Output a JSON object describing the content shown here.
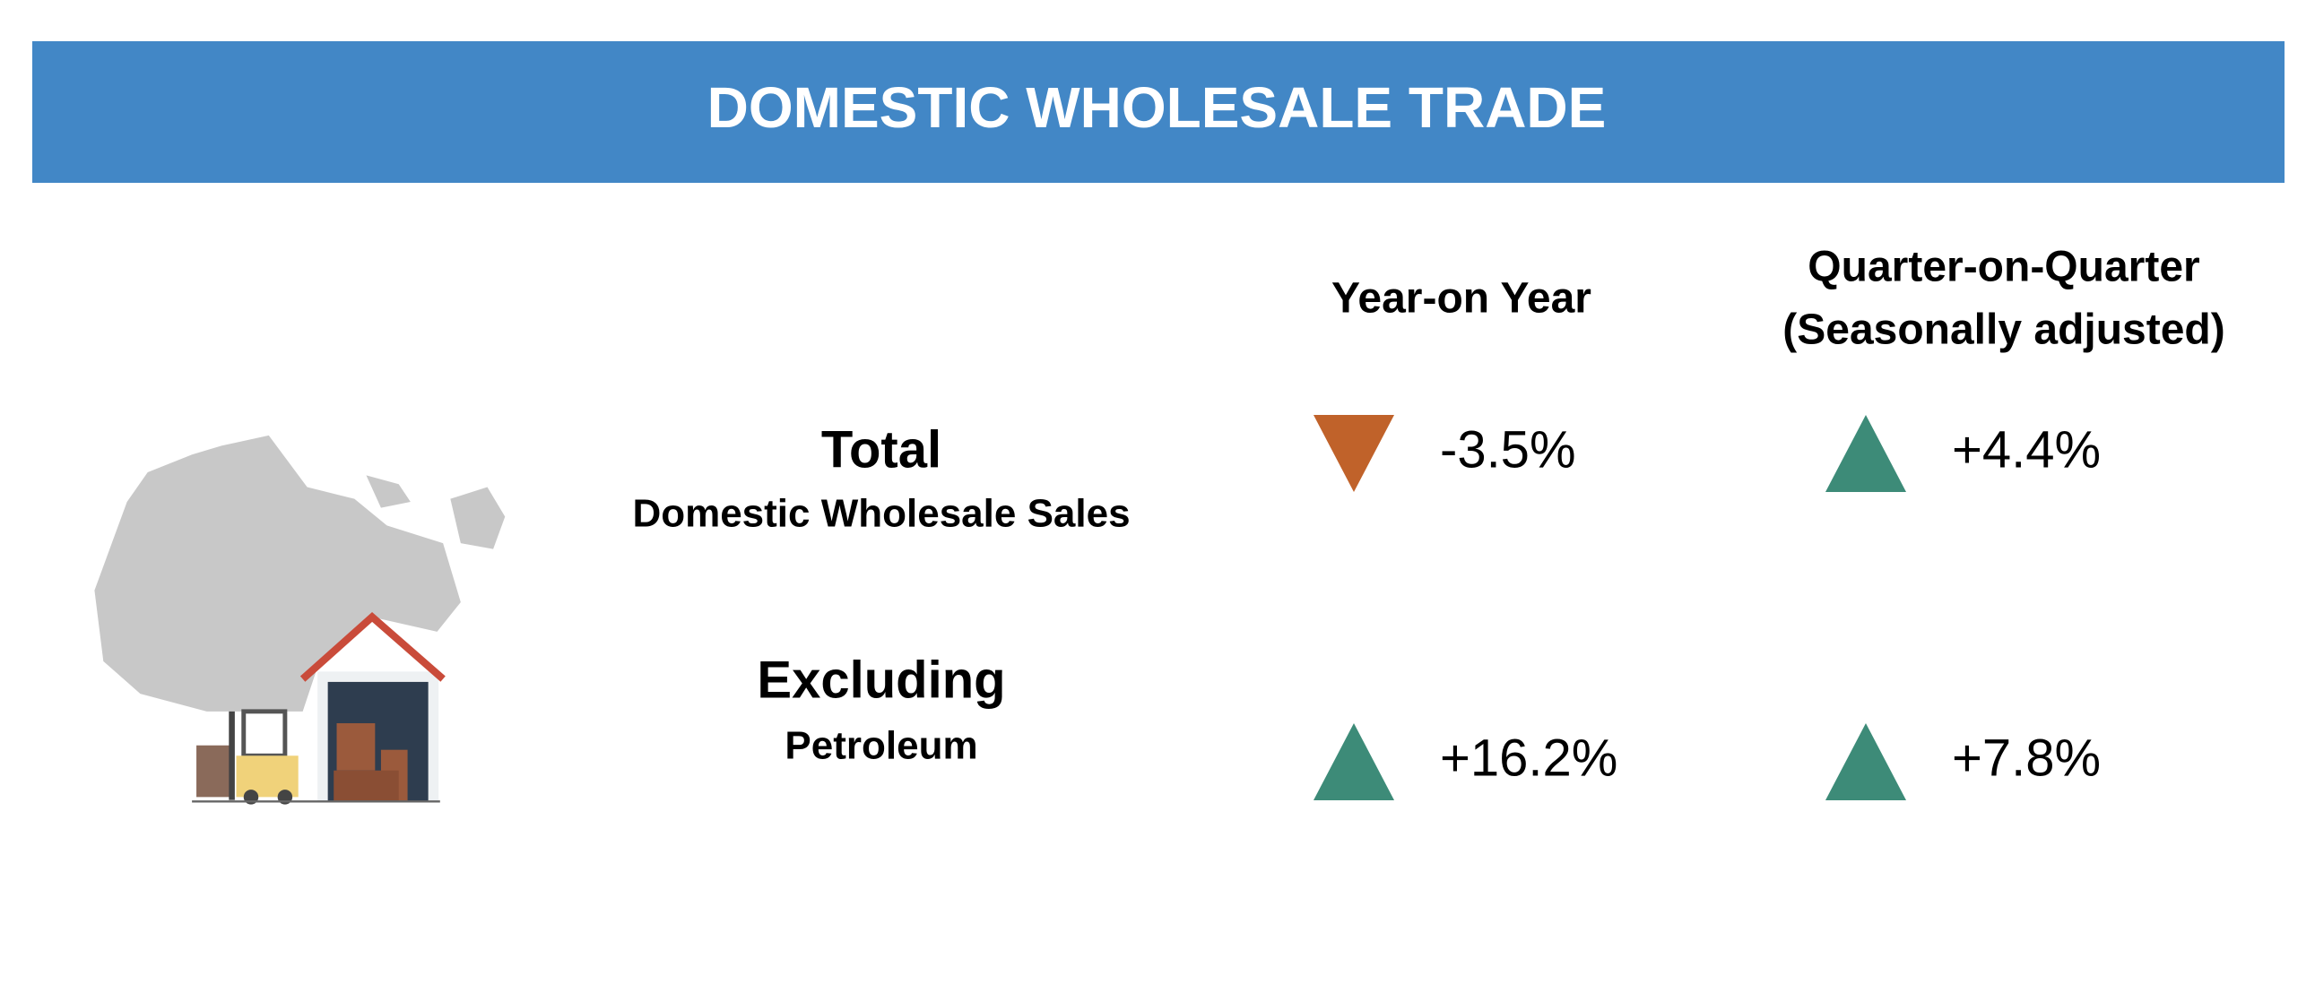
{
  "header": {
    "title": "DOMESTIC WHOLESALE TRADE"
  },
  "columns": [
    {
      "lines": [
        "Year-on Year"
      ]
    },
    {
      "lines": [
        "Quarter-on-Quarter",
        "(Seasonally adjusted)"
      ]
    }
  ],
  "rows": [
    {
      "label": "Total",
      "sublabel": "Domestic Wholesale Sales",
      "values": [
        "-3.5%",
        "+4.4%"
      ]
    },
    {
      "label": "Excluding",
      "sublabel": "Petroleum",
      "values": [
        "+16.2%",
        "+7.8%"
      ]
    }
  ]
}
